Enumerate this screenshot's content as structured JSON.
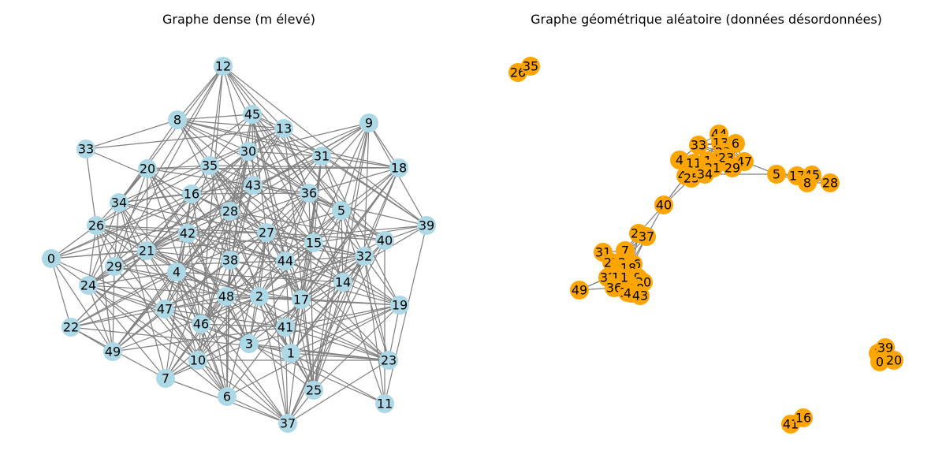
{
  "panels": [
    {
      "title": "Graphe dense (m élevé)",
      "node_color": "#add8e6",
      "edge_color": "#808080",
      "nodes": [
        "12",
        "45",
        "8",
        "13",
        "9",
        "30",
        "31",
        "33",
        "20",
        "35",
        "18",
        "43",
        "36",
        "16",
        "34",
        "28",
        "5",
        "39",
        "26",
        "42",
        "27",
        "40",
        "15",
        "0",
        "21",
        "32",
        "44",
        "29",
        "38",
        "4",
        "24",
        "14",
        "48",
        "2",
        "17",
        "19",
        "47",
        "46",
        "41",
        "22",
        "3",
        "1",
        "49",
        "10",
        "23",
        "7",
        "25",
        "6",
        "11",
        "37"
      ]
    },
    {
      "title": "Graphe géométrique aléatoire (données désordonnées)",
      "node_color": "#ffa500",
      "edge_color": "#808080",
      "nodes": [
        "26",
        "35",
        "44",
        "13",
        "6",
        "33",
        "22",
        "23",
        "47",
        "4",
        "11",
        "1",
        "39",
        "21",
        "29",
        "42",
        "25",
        "34",
        "5",
        "17",
        "45",
        "8",
        "28",
        "40",
        "24",
        "37",
        "31",
        "7",
        "27",
        "2",
        "46",
        "18",
        "32",
        "19",
        "10",
        "9",
        "30",
        "36",
        "12",
        "38",
        "48",
        "43",
        "49",
        "3",
        "39",
        "0",
        "20",
        "41",
        "16"
      ]
    }
  ]
}
